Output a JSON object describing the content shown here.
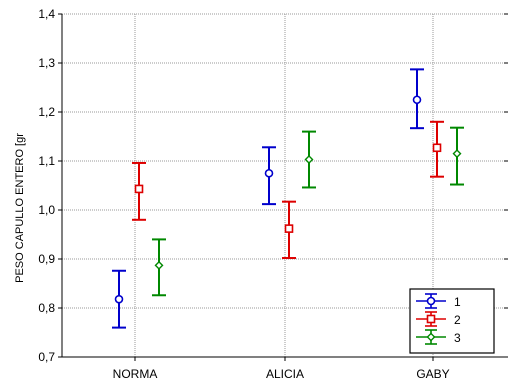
{
  "chart_data": {
    "type": "scatter",
    "subtype": "error-bar",
    "categories": [
      "NORMA",
      "ALICIA",
      "GABY"
    ],
    "ylabel": "PESO CAPULLO ENTERO [gr",
    "xlabel": "",
    "ylim": [
      0.7,
      1.4
    ],
    "yticks": [
      "0,7",
      "0,8",
      "0,9",
      "1,0",
      "1,1",
      "1,2",
      "1,3",
      "1,4"
    ],
    "ytick_values": [
      0.7,
      0.8,
      0.9,
      1.0,
      1.1,
      1.2,
      1.3,
      1.4
    ],
    "grid": true,
    "legend_position": "bottom-right",
    "series": [
      {
        "name": "1",
        "color": "#0000cc",
        "marker": "circle",
        "mean": [
          0.818,
          1.075,
          1.225
        ],
        "low": [
          0.76,
          1.012,
          1.167
        ],
        "high": [
          0.876,
          1.128,
          1.287
        ]
      },
      {
        "name": "2",
        "color": "#dd0000",
        "marker": "square",
        "mean": [
          1.043,
          0.962,
          1.127
        ],
        "low": [
          0.98,
          0.902,
          1.068
        ],
        "high": [
          1.096,
          1.017,
          1.18
        ]
      },
      {
        "name": "3",
        "color": "#008800",
        "marker": "diamond",
        "mean": [
          0.887,
          1.103,
          1.115
        ],
        "low": [
          0.826,
          1.046,
          1.052
        ],
        "high": [
          0.94,
          1.16,
          1.168
        ]
      }
    ]
  }
}
